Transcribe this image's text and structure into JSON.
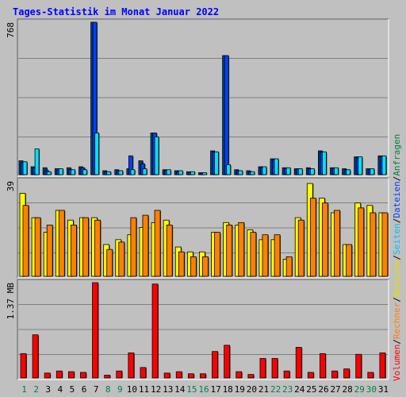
{
  "title": "Tages-Statistik im Monat Januar 2022",
  "chart_data": [
    {
      "type": "bar",
      "x": [
        "1",
        "2",
        "3",
        "4",
        "5",
        "6",
        "7",
        "8",
        "9",
        "10",
        "11",
        "12",
        "13",
        "14",
        "15",
        "16",
        "17",
        "18",
        "19",
        "20",
        "21",
        "22",
        "23",
        "24",
        "25",
        "26",
        "27",
        "28",
        "29",
        "30",
        "31"
      ],
      "weekend": [
        1,
        2,
        8,
        9,
        15,
        16,
        22,
        23,
        29,
        30
      ],
      "ylabel": "768",
      "ylim": [
        0,
        768
      ],
      "series": [
        {
          "name": "Anfragen",
          "color": "#004080",
          "values": [
            70,
            40,
            35,
            30,
            35,
            40,
            768,
            20,
            25,
            30,
            70,
            210,
            25,
            20,
            15,
            10,
            120,
            600,
            25,
            20,
            40,
            80,
            35,
            30,
            35,
            120,
            35,
            30,
            90,
            30,
            95
          ]
        },
        {
          "name": "Dateien",
          "color": "#0040ff",
          "values": [
            60,
            35,
            20,
            30,
            25,
            35,
            768,
            15,
            20,
            95,
            55,
            210,
            20,
            15,
            10,
            8,
            115,
            600,
            20,
            15,
            35,
            75,
            30,
            30,
            30,
            115,
            30,
            25,
            85,
            25,
            90
          ]
        },
        {
          "name": "Seiten",
          "color": "#00e0ff",
          "values": [
            65,
            130,
            15,
            30,
            25,
            25,
            210,
            15,
            20,
            25,
            30,
            190,
            25,
            20,
            15,
            10,
            115,
            50,
            20,
            15,
            40,
            80,
            35,
            30,
            30,
            115,
            35,
            25,
            90,
            30,
            95
          ]
        }
      ]
    },
    {
      "type": "bar",
      "x": [
        "1",
        "2",
        "3",
        "4",
        "5",
        "6",
        "7",
        "8",
        "9",
        "10",
        "11",
        "12",
        "13",
        "14",
        "15",
        "16",
        "17",
        "18",
        "19",
        "20",
        "21",
        "22",
        "23",
        "24",
        "25",
        "26",
        "27",
        "28",
        "29",
        "30",
        "31"
      ],
      "ylabel": "39",
      "ylim": [
        0,
        39
      ],
      "series": [
        {
          "name": "Besuche",
          "color": "#ffff00",
          "values": [
            34,
            24,
            18,
            27,
            23,
            24,
            24,
            13,
            15,
            17,
            20,
            22,
            23,
            12,
            10,
            10,
            18,
            22,
            21,
            19,
            15,
            15,
            7,
            24,
            38,
            32,
            26,
            13,
            30,
            29,
            26
          ]
        },
        {
          "name": "Rechner",
          "color": "#ff8000",
          "values": [
            29,
            24,
            21,
            27,
            21,
            24,
            23,
            11,
            14,
            24,
            25,
            27,
            21,
            10,
            8,
            8,
            18,
            21,
            22,
            18,
            17,
            17,
            8,
            23,
            32,
            30,
            27,
            13,
            28,
            26,
            26
          ]
        }
      ]
    },
    {
      "type": "bar",
      "x": [
        "1",
        "2",
        "3",
        "4",
        "5",
        "6",
        "7",
        "8",
        "9",
        "10",
        "11",
        "12",
        "13",
        "14",
        "15",
        "16",
        "17",
        "18",
        "19",
        "20",
        "21",
        "22",
        "23",
        "24",
        "25",
        "26",
        "27",
        "28",
        "29",
        "30",
        "31"
      ],
      "ylabel": "1.37 MB",
      "ylim": [
        0,
        1.37
      ],
      "series": [
        {
          "name": "Volumen",
          "color": "#ff0000",
          "values": [
            0.35,
            0.62,
            0.07,
            0.1,
            0.09,
            0.08,
            1.37,
            0.04,
            0.1,
            0.36,
            0.15,
            1.35,
            0.07,
            0.09,
            0.06,
            0.06,
            0.38,
            0.47,
            0.09,
            0.05,
            0.28,
            0.28,
            0.1,
            0.44,
            0.08,
            0.35,
            0.1,
            0.13,
            0.34,
            0.08,
            0.36
          ]
        }
      ]
    }
  ],
  "legend": {
    "volumen": {
      "text": "Volumen",
      "color": "#ff0000"
    },
    "sep1": "/",
    "rechner": {
      "text": "Rechner",
      "color": "#ff8000"
    },
    "sep2": "/",
    "besuche": {
      "text": "Besuche",
      "color": "#e0e000"
    },
    "sep3": "/",
    "seiten": {
      "text": "Seiten",
      "color": "#00c0ff"
    },
    "sep4": "/",
    "dateien": {
      "text": "Dateien",
      "color": "#0040ff"
    },
    "sep5": "/",
    "anfragen": {
      "text": "Anfragen",
      "color": "#008040"
    }
  },
  "colors": {
    "background": "#c0c0c0",
    "weekday_label": "#000000",
    "weekend_label": "#008040",
    "grid": "#808080"
  }
}
